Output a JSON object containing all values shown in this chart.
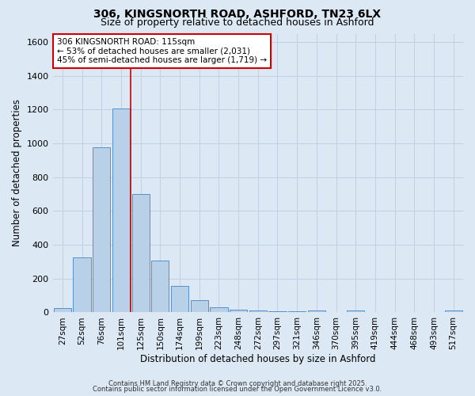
{
  "title1": "306, KINGSNORTH ROAD, ASHFORD, TN23 6LX",
  "title2": "Size of property relative to detached houses in Ashford",
  "xlabel": "Distribution of detached houses by size in Ashford",
  "ylabel": "Number of detached properties",
  "bar_labels": [
    "27sqm",
    "52sqm",
    "76sqm",
    "101sqm",
    "125sqm",
    "150sqm",
    "174sqm",
    "199sqm",
    "223sqm",
    "248sqm",
    "272sqm",
    "297sqm",
    "321sqm",
    "346sqm",
    "370sqm",
    "395sqm",
    "419sqm",
    "444sqm",
    "468sqm",
    "493sqm",
    "517sqm"
  ],
  "bar_values": [
    25,
    325,
    975,
    1205,
    700,
    305,
    158,
    72,
    28,
    15,
    10,
    8,
    5,
    10,
    0,
    10,
    0,
    0,
    0,
    0,
    10
  ],
  "bar_color": "#b8d0e8",
  "bar_edge_color": "#5590c8",
  "property_line_x": 3.5,
  "annotation_text": "306 KINGSNORTH ROAD: 115sqm\n← 53% of detached houses are smaller (2,031)\n45% of semi-detached houses are larger (1,719) →",
  "annotation_box_color": "#ffffff",
  "annotation_box_edge": "#cc0000",
  "vline_color": "#cc0000",
  "ylim": [
    0,
    1650
  ],
  "yticks": [
    0,
    200,
    400,
    600,
    800,
    1000,
    1200,
    1400,
    1600
  ],
  "grid_color": "#c0d0e0",
  "background_color": "#dce8f4",
  "footer1": "Contains HM Land Registry data © Crown copyright and database right 2025.",
  "footer2": "Contains public sector information licensed under the Open Government Licence v3.0."
}
